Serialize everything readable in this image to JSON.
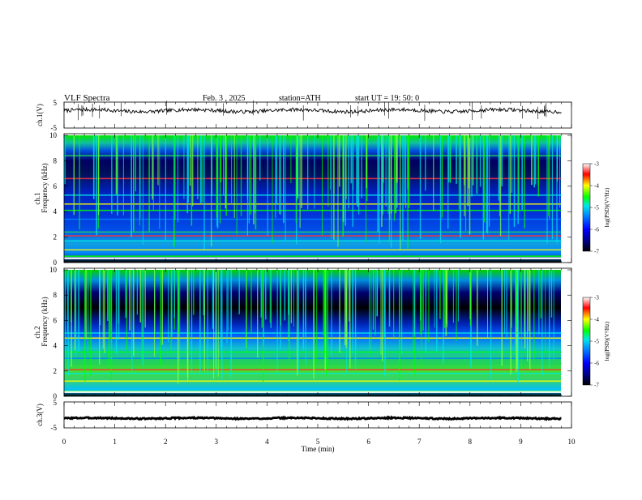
{
  "header": {
    "title": "VLF Spectra",
    "date": "Feb. 3 , 2025",
    "station": "station=ATH",
    "start": "start UT =  19: 50: 0"
  },
  "chart_data": [
    {
      "type": "line",
      "name": "ch1-waveform",
      "ylabel": "ch.1(V)",
      "ylim": [
        -5,
        5
      ],
      "yticks": [
        "5",
        "-5"
      ],
      "xlim": [
        0,
        10
      ],
      "baseline_v": 1.7,
      "xdata_extent": [
        0,
        9.8
      ]
    },
    {
      "type": "heatmap",
      "name": "ch1-spectrogram",
      "ylabel": "Frequency (kHz)",
      "ylabel_top": "ch.1",
      "ylim": [
        0,
        10
      ],
      "yticks": [
        "0",
        "2",
        "4",
        "6",
        "8",
        "10"
      ],
      "xlim": [
        0,
        10
      ],
      "xdata_extent": [
        0,
        9.8
      ],
      "colorbar": {
        "label": "log(PSD)(V²/Hz)",
        "range": [
          -7,
          -3
        ],
        "ticks": [
          "-3",
          "-4",
          "-5",
          "-6",
          "-7"
        ]
      },
      "bands_khz": [
        0.5,
        1.0,
        1.7,
        2.1,
        2.4,
        3.4,
        4.1,
        4.6,
        5.3,
        6.6,
        8.4
      ]
    },
    {
      "type": "heatmap",
      "name": "ch2-spectrogram",
      "ylabel": "Frequency (kHz)",
      "ylabel_top": "ch.2",
      "ylim": [
        0,
        10
      ],
      "yticks": [
        "0",
        "2",
        "4",
        "6",
        "8",
        "10"
      ],
      "xlim": [
        0,
        10
      ],
      "xdata_extent": [
        0,
        9.8
      ],
      "colorbar": {
        "label": "log(PSD)(V²/Hz)",
        "range": [
          -7,
          -3
        ],
        "ticks": [
          "-3",
          "-4",
          "-5",
          "-6",
          "-7"
        ]
      },
      "bands_khz": [
        0.4,
        1.2,
        1.8,
        2.1,
        2.6,
        3.0,
        3.5,
        4.6,
        5.0
      ]
    },
    {
      "type": "line",
      "name": "ch3-waveform",
      "ylabel": "ch.3(V)",
      "ylim": [
        -5,
        5
      ],
      "yticks": [
        "5",
        "-5"
      ],
      "xlim": [
        0,
        10
      ],
      "baseline_v": -1.3,
      "xdata_extent": [
        0,
        9.8
      ]
    }
  ],
  "xaxis": {
    "label": "Time  (min)",
    "ticks": [
      "0",
      "1",
      "2",
      "3",
      "4",
      "5",
      "6",
      "7",
      "8",
      "9",
      "10"
    ]
  },
  "colors": {
    "colormap": [
      "#000000",
      "#00008a",
      "#0000ff",
      "#0080ff",
      "#00e6e6",
      "#00ff00",
      "#ffff00",
      "#ff0000",
      "#ffffff"
    ]
  }
}
